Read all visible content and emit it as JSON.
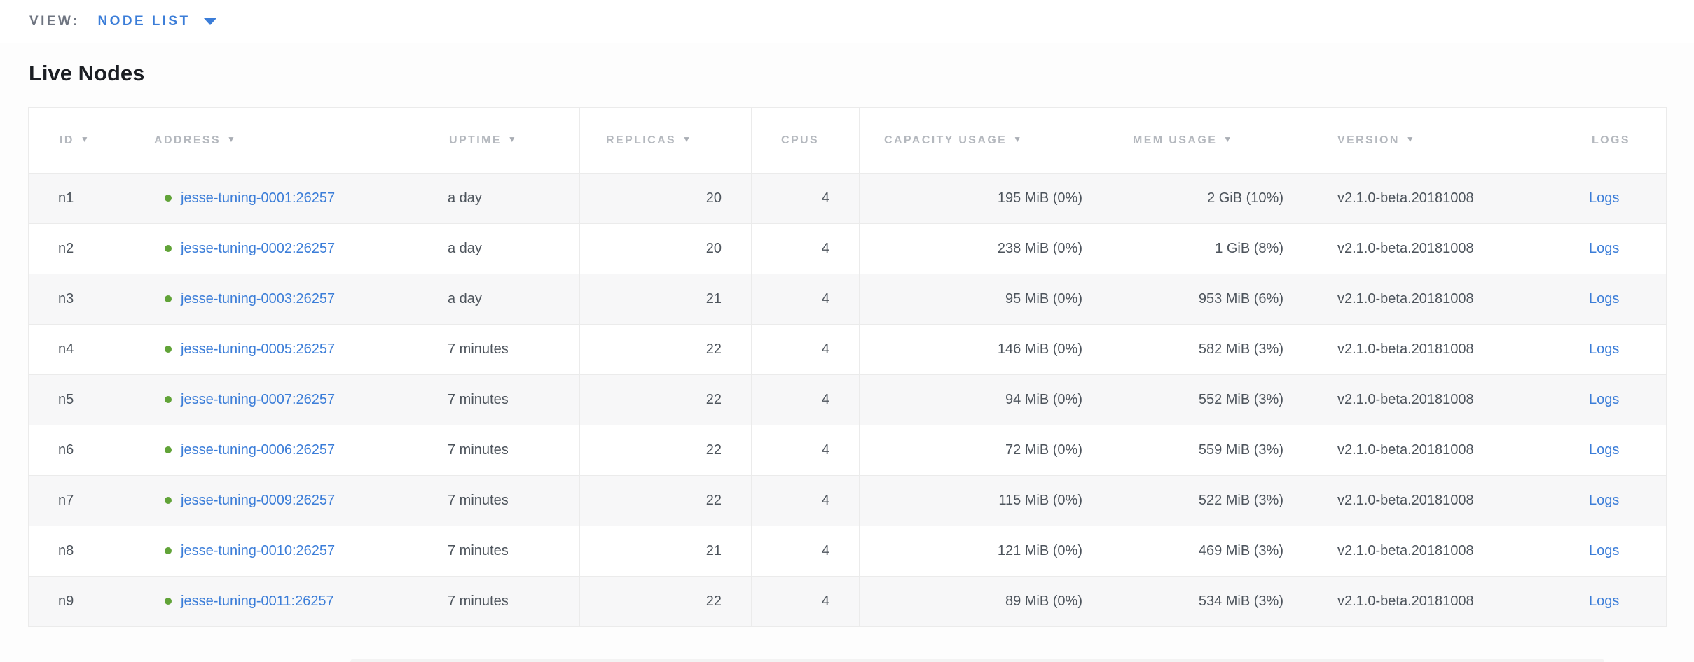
{
  "view_bar": {
    "label": "VIEW:",
    "selected": "NODE LIST"
  },
  "page": {
    "title": "Live Nodes"
  },
  "colors": {
    "accent_blue": "#3b7dd8",
    "status_green": "#61a338"
  },
  "table": {
    "sort_icon": "▼",
    "columns": [
      {
        "label": "ID",
        "sortable": true
      },
      {
        "label": "ADDRESS",
        "sortable": true
      },
      {
        "label": "UPTIME",
        "sortable": true
      },
      {
        "label": "REPLICAS",
        "sortable": true
      },
      {
        "label": "CPUS",
        "sortable": false
      },
      {
        "label": "CAPACITY USAGE",
        "sortable": true
      },
      {
        "label": "MEM USAGE",
        "sortable": true
      },
      {
        "label": "VERSION",
        "sortable": true
      },
      {
        "label": "LOGS",
        "sortable": false
      }
    ],
    "rows": [
      {
        "id": "n1",
        "status": "healthy",
        "address": "jesse-tuning-0001:26257",
        "uptime": "a day",
        "replicas": "20",
        "cpus": "4",
        "capacity": "195 MiB (0%)",
        "mem": "2 GiB (10%)",
        "version": "v2.1.0-beta.20181008",
        "logs": "Logs"
      },
      {
        "id": "n2",
        "status": "healthy",
        "address": "jesse-tuning-0002:26257",
        "uptime": "a day",
        "replicas": "20",
        "cpus": "4",
        "capacity": "238 MiB (0%)",
        "mem": "1 GiB (8%)",
        "version": "v2.1.0-beta.20181008",
        "logs": "Logs"
      },
      {
        "id": "n3",
        "status": "healthy",
        "address": "jesse-tuning-0003:26257",
        "uptime": "a day",
        "replicas": "21",
        "cpus": "4",
        "capacity": "95 MiB (0%)",
        "mem": "953 MiB (6%)",
        "version": "v2.1.0-beta.20181008",
        "logs": "Logs"
      },
      {
        "id": "n4",
        "status": "healthy",
        "address": "jesse-tuning-0005:26257",
        "uptime": "7 minutes",
        "replicas": "22",
        "cpus": "4",
        "capacity": "146 MiB (0%)",
        "mem": "582 MiB (3%)",
        "version": "v2.1.0-beta.20181008",
        "logs": "Logs"
      },
      {
        "id": "n5",
        "status": "healthy",
        "address": "jesse-tuning-0007:26257",
        "uptime": "7 minutes",
        "replicas": "22",
        "cpus": "4",
        "capacity": "94 MiB (0%)",
        "mem": "552 MiB (3%)",
        "version": "v2.1.0-beta.20181008",
        "logs": "Logs"
      },
      {
        "id": "n6",
        "status": "healthy",
        "address": "jesse-tuning-0006:26257",
        "uptime": "7 minutes",
        "replicas": "22",
        "cpus": "4",
        "capacity": "72 MiB (0%)",
        "mem": "559 MiB (3%)",
        "version": "v2.1.0-beta.20181008",
        "logs": "Logs"
      },
      {
        "id": "n7",
        "status": "healthy",
        "address": "jesse-tuning-0009:26257",
        "uptime": "7 minutes",
        "replicas": "22",
        "cpus": "4",
        "capacity": "115 MiB (0%)",
        "mem": "522 MiB (3%)",
        "version": "v2.1.0-beta.20181008",
        "logs": "Logs"
      },
      {
        "id": "n8",
        "status": "healthy",
        "address": "jesse-tuning-0010:26257",
        "uptime": "7 minutes",
        "replicas": "21",
        "cpus": "4",
        "capacity": "121 MiB (0%)",
        "mem": "469 MiB (3%)",
        "version": "v2.1.0-beta.20181008",
        "logs": "Logs"
      },
      {
        "id": "n9",
        "status": "healthy",
        "address": "jesse-tuning-0011:26257",
        "uptime": "7 minutes",
        "replicas": "22",
        "cpus": "4",
        "capacity": "89 MiB (0%)",
        "mem": "534 MiB (3%)",
        "version": "v2.1.0-beta.20181008",
        "logs": "Logs"
      }
    ]
  }
}
